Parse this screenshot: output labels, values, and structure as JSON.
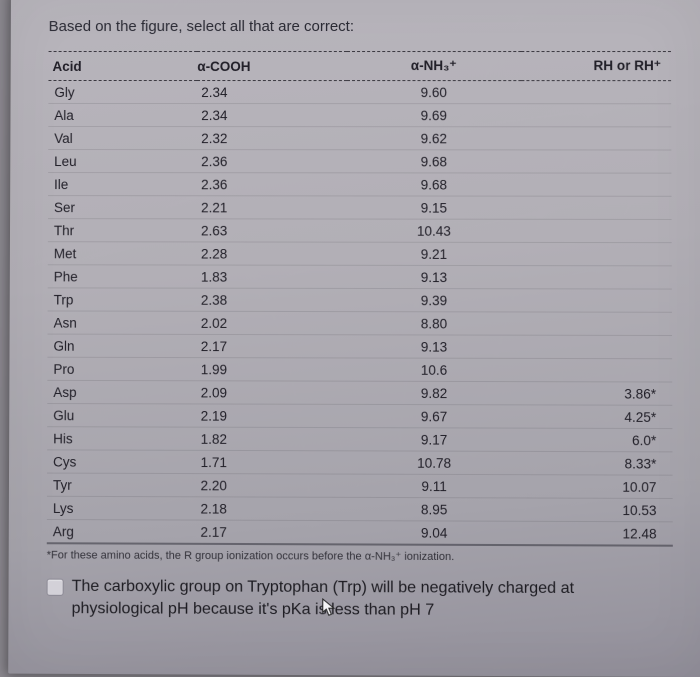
{
  "question": "Based on the figure, select all that are correct:",
  "headers": {
    "c1": "Acid",
    "c2": "α-COOH",
    "c3": "α-NH₃⁺",
    "c4": "RH or RH⁺"
  },
  "rows": [
    {
      "acid": "Gly",
      "cooh": "2.34",
      "nh3": "9.60",
      "rh": ""
    },
    {
      "acid": "Ala",
      "cooh": "2.34",
      "nh3": "9.69",
      "rh": ""
    },
    {
      "acid": "Val",
      "cooh": "2.32",
      "nh3": "9.62",
      "rh": ""
    },
    {
      "acid": "Leu",
      "cooh": "2.36",
      "nh3": "9.68",
      "rh": ""
    },
    {
      "acid": "Ile",
      "cooh": "2.36",
      "nh3": "9.68",
      "rh": ""
    },
    {
      "acid": "Ser",
      "cooh": "2.21",
      "nh3": "9.15",
      "rh": ""
    },
    {
      "acid": "Thr",
      "cooh": "2.63",
      "nh3": "10.43",
      "rh": ""
    },
    {
      "acid": "Met",
      "cooh": "2.28",
      "nh3": "9.21",
      "rh": ""
    },
    {
      "acid": "Phe",
      "cooh": "1.83",
      "nh3": "9.13",
      "rh": ""
    },
    {
      "acid": "Trp",
      "cooh": "2.38",
      "nh3": "9.39",
      "rh": ""
    },
    {
      "acid": "Asn",
      "cooh": "2.02",
      "nh3": "8.80",
      "rh": ""
    },
    {
      "acid": "Gln",
      "cooh": "2.17",
      "nh3": "9.13",
      "rh": ""
    },
    {
      "acid": "Pro",
      "cooh": "1.99",
      "nh3": "10.6",
      "rh": ""
    },
    {
      "acid": "Asp",
      "cooh": "2.09",
      "nh3": "9.82",
      "rh": "3.86*"
    },
    {
      "acid": "Glu",
      "cooh": "2.19",
      "nh3": "9.67",
      "rh": "4.25*"
    },
    {
      "acid": "His",
      "cooh": "1.82",
      "nh3": "9.17",
      "rh": "6.0*"
    },
    {
      "acid": "Cys",
      "cooh": "1.71",
      "nh3": "10.78",
      "rh": "8.33*"
    },
    {
      "acid": "Tyr",
      "cooh": "2.20",
      "nh3": "9.11",
      "rh": "10.07"
    },
    {
      "acid": "Lys",
      "cooh": "2.18",
      "nh3": "8.95",
      "rh": "10.53"
    },
    {
      "acid": "Arg",
      "cooh": "2.17",
      "nh3": "9.04",
      "rh": "12.48"
    }
  ],
  "footnote": "*For these amino acids, the R group ionization occurs before the α-NH₃⁺ ionization.",
  "answer": "The carboxylic group on Tryptophan (Trp) will be negatively charged at physiological pH because it's pKa is less than pH 7",
  "styling": {
    "page_bg_gradient": [
      "#b8b5bc",
      "#b2afb6",
      "#a5a3ab",
      "#928f9a"
    ],
    "outer_bg": "#8a878e",
    "text_color": "#2a2a34",
    "border_dash_color": "#3a3840",
    "answer_text_color": "#1d1c22",
    "checkbox_bg": "#d3d1d8",
    "checkbox_border": "#8b8994",
    "base_fontsize": 13.5,
    "question_fontsize": 15,
    "answer_fontsize": 16,
    "footnote_fontsize": 11,
    "col_widths_pct": [
      24,
      24,
      28,
      24
    ]
  }
}
